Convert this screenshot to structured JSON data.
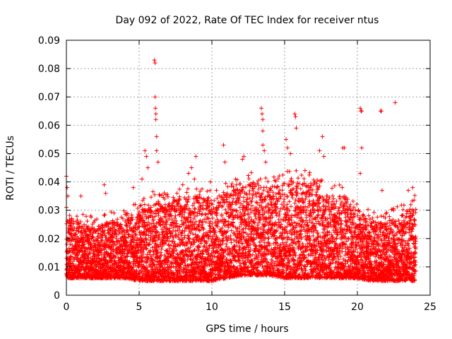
{
  "chart_data": {
    "type": "scatter",
    "title": "Day 092 of 2022, Rate Of TEC Index for receiver ntus",
    "xlabel": "GPS time / hours",
    "ylabel": "ROTI / TECUs",
    "xlim": [
      0,
      25
    ],
    "ylim": [
      0,
      0.09
    ],
    "x_ticks": [
      0,
      5,
      10,
      15,
      20,
      25
    ],
    "x_tick_labels": [
      "0",
      "5",
      "10",
      "15",
      "20",
      "25"
    ],
    "y_ticks": [
      0,
      0.01,
      0.02,
      0.03,
      0.04,
      0.05,
      0.06,
      0.07,
      0.08,
      0.09
    ],
    "y_tick_labels": [
      "0",
      "0.01",
      "0.02",
      "0.03",
      "0.04",
      "0.05",
      "0.06",
      "0.07",
      "0.08",
      "0.09"
    ],
    "grid": true,
    "marker": "+",
    "color": "#ff0000",
    "sampling_step_hours": 0.05,
    "band_profile": {
      "hours": [
        0,
        1,
        2,
        3,
        4,
        5,
        6,
        7,
        8,
        9,
        10,
        11,
        12,
        13,
        14,
        15,
        16,
        17,
        18,
        19,
        20,
        21,
        22,
        23,
        24
      ],
      "low": [
        0.006,
        0.006,
        0.006,
        0.006,
        0.006,
        0.005,
        0.005,
        0.005,
        0.005,
        0.005,
        0.005,
        0.006,
        0.007,
        0.007,
        0.007,
        0.006,
        0.006,
        0.006,
        0.006,
        0.006,
        0.006,
        0.005,
        0.005,
        0.005,
        0.005
      ],
      "high": [
        0.028,
        0.025,
        0.024,
        0.026,
        0.026,
        0.03,
        0.033,
        0.032,
        0.035,
        0.035,
        0.033,
        0.036,
        0.038,
        0.04,
        0.038,
        0.04,
        0.04,
        0.04,
        0.035,
        0.035,
        0.028,
        0.026,
        0.026,
        0.028,
        0.032
      ]
    },
    "outliers": [
      {
        "x": 0.0,
        "y": 0.042
      },
      {
        "x": 0.05,
        "y": 0.038
      },
      {
        "x": 0.1,
        "y": 0.035
      },
      {
        "x": 1.0,
        "y": 0.035
      },
      {
        "x": 2.6,
        "y": 0.039
      },
      {
        "x": 2.7,
        "y": 0.036
      },
      {
        "x": 4.6,
        "y": 0.038
      },
      {
        "x": 5.2,
        "y": 0.041
      },
      {
        "x": 5.4,
        "y": 0.051
      },
      {
        "x": 5.5,
        "y": 0.049
      },
      {
        "x": 5.6,
        "y": 0.045
      },
      {
        "x": 6.05,
        "y": 0.083
      },
      {
        "x": 6.1,
        "y": 0.082
      },
      {
        "x": 6.1,
        "y": 0.07
      },
      {
        "x": 6.12,
        "y": 0.066
      },
      {
        "x": 6.15,
        "y": 0.064
      },
      {
        "x": 6.15,
        "y": 0.062
      },
      {
        "x": 6.2,
        "y": 0.056
      },
      {
        "x": 6.2,
        "y": 0.051
      },
      {
        "x": 6.3,
        "y": 0.047
      },
      {
        "x": 8.4,
        "y": 0.043
      },
      {
        "x": 8.6,
        "y": 0.045
      },
      {
        "x": 8.8,
        "y": 0.041
      },
      {
        "x": 8.9,
        "y": 0.049
      },
      {
        "x": 9.9,
        "y": 0.04
      },
      {
        "x": 10.8,
        "y": 0.053
      },
      {
        "x": 10.9,
        "y": 0.047
      },
      {
        "x": 12.2,
        "y": 0.049
      },
      {
        "x": 12.1,
        "y": 0.048
      },
      {
        "x": 13.4,
        "y": 0.066
      },
      {
        "x": 13.45,
        "y": 0.064
      },
      {
        "x": 13.5,
        "y": 0.062
      },
      {
        "x": 13.5,
        "y": 0.058
      },
      {
        "x": 13.5,
        "y": 0.053
      },
      {
        "x": 13.6,
        "y": 0.051
      },
      {
        "x": 13.7,
        "y": 0.047
      },
      {
        "x": 15.1,
        "y": 0.055
      },
      {
        "x": 15.2,
        "y": 0.052
      },
      {
        "x": 15.4,
        "y": 0.05
      },
      {
        "x": 15.7,
        "y": 0.064
      },
      {
        "x": 15.75,
        "y": 0.063
      },
      {
        "x": 15.8,
        "y": 0.059
      },
      {
        "x": 16.4,
        "y": 0.044
      },
      {
        "x": 17.6,
        "y": 0.056
      },
      {
        "x": 17.4,
        "y": 0.051
      },
      {
        "x": 17.7,
        "y": 0.049
      },
      {
        "x": 19.0,
        "y": 0.052
      },
      {
        "x": 19.1,
        "y": 0.052
      },
      {
        "x": 20.2,
        "y": 0.066
      },
      {
        "x": 20.25,
        "y": 0.065
      },
      {
        "x": 20.3,
        "y": 0.065
      },
      {
        "x": 20.3,
        "y": 0.052
      },
      {
        "x": 20.2,
        "y": 0.043
      },
      {
        "x": 21.6,
        "y": 0.065
      },
      {
        "x": 21.65,
        "y": 0.065
      },
      {
        "x": 21.7,
        "y": 0.037
      },
      {
        "x": 22.5,
        "y": 0.03
      },
      {
        "x": 22.6,
        "y": 0.068
      },
      {
        "x": 23.5,
        "y": 0.037
      },
      {
        "x": 23.8,
        "y": 0.038
      }
    ]
  }
}
